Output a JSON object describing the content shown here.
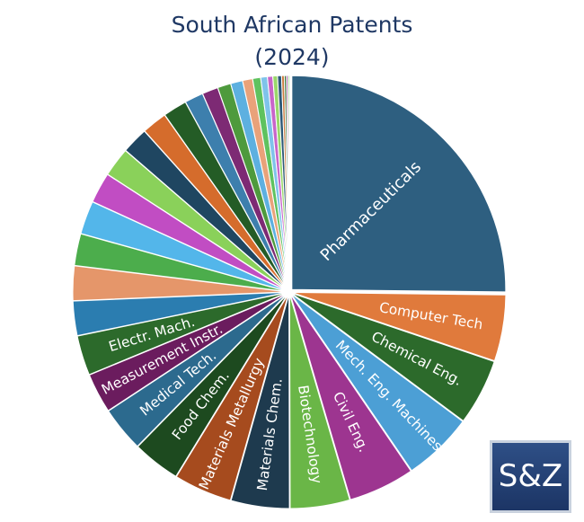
{
  "chart_data": {
    "type": "pie",
    "title": "South African Patents",
    "subtitle": "(2024)",
    "slices": [
      {
        "label": "Pharmaceuticals",
        "value": 25.2,
        "color": "#2e5f80"
      },
      {
        "label": "Computer Tech",
        "value": 5.0,
        "color": "#e07a3c"
      },
      {
        "label": "Chemical Eng.",
        "value": 5.0,
        "color": "#2c6a2b"
      },
      {
        "label": "Mech. Eng. Machines",
        "value": 5.3,
        "color": "#4c9fd5"
      },
      {
        "label": "Civil Eng.",
        "value": 5.0,
        "color": "#9d3590"
      },
      {
        "label": "Biotechnology",
        "value": 4.5,
        "color": "#6ab647"
      },
      {
        "label": "Materials Chem.",
        "value": 4.4,
        "color": "#1e3a4e"
      },
      {
        "label": "Materials Metallurgy",
        "value": 4.4,
        "color": "#a64b1e"
      },
      {
        "label": "Food Chem.",
        "value": 3.6,
        "color": "#1d4a1f"
      },
      {
        "label": "Medical Tech.",
        "value": 3.4,
        "color": "#2c6a8e"
      },
      {
        "label": "Measurement Instr.",
        "value": 3.0,
        "color": "#6b1c5e"
      },
      {
        "label": "Electr. Mach.",
        "value": 3.0,
        "color": "#2c6a2b"
      },
      {
        "label": "",
        "value": 2.6,
        "color": "#2b7db0"
      },
      {
        "label": "",
        "value": 2.6,
        "color": "#e5966a"
      },
      {
        "label": "",
        "value": 2.4,
        "color": "#4cad4c"
      },
      {
        "label": "",
        "value": 2.5,
        "color": "#53b6ea"
      },
      {
        "label": "",
        "value": 2.3,
        "color": "#c14dc3"
      },
      {
        "label": "",
        "value": 2.2,
        "color": "#8ad15a"
      },
      {
        "label": "",
        "value": 2.0,
        "color": "#1f4661"
      },
      {
        "label": "",
        "value": 1.9,
        "color": "#d56c2c"
      },
      {
        "label": "",
        "value": 1.8,
        "color": "#245c26"
      },
      {
        "label": "",
        "value": 1.4,
        "color": "#3d7fad"
      },
      {
        "label": "",
        "value": 1.2,
        "color": "#7d2a74"
      },
      {
        "label": "",
        "value": 1.0,
        "color": "#4e9a3d"
      },
      {
        "label": "",
        "value": 0.9,
        "color": "#5db0e0"
      },
      {
        "label": "",
        "value": 0.75,
        "color": "#e9a27a"
      },
      {
        "label": "",
        "value": 0.6,
        "color": "#5fc25f"
      },
      {
        "label": "",
        "value": 0.5,
        "color": "#7fc3ea"
      },
      {
        "label": "",
        "value": 0.4,
        "color": "#c865c9"
      },
      {
        "label": "",
        "value": 0.35,
        "color": "#9ad86b"
      },
      {
        "label": "",
        "value": 0.3,
        "color": "#2c5876"
      },
      {
        "label": "",
        "value": 0.2,
        "color": "#c97a3d"
      },
      {
        "label": "",
        "value": 0.15,
        "color": "#2f6d30"
      },
      {
        "label": "",
        "value": 0.12,
        "color": "#93398a"
      },
      {
        "label": "",
        "value": 0.1,
        "color": "#6ab647"
      }
    ]
  },
  "logo": {
    "text": "S&Z"
  }
}
